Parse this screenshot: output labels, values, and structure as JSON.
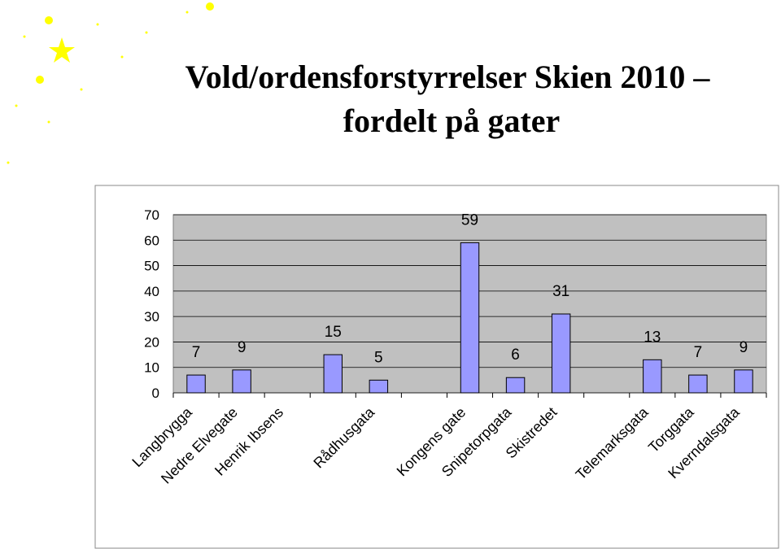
{
  "chart_data": {
    "type": "bar",
    "title": "Vold/ordensforstyrrelser Skien 2010 –",
    "subtitle": "fordelt på gater",
    "categories": [
      "Langbrygga",
      "Nedre Elvegate",
      "Henrik Ibsens",
      null,
      "Rådhusgata",
      null,
      "Kongens gate",
      "Snipetorpgata",
      "Skistredet",
      null,
      "Telemarksgata",
      "Torggata",
      "Kverndalsgata"
    ],
    "values": [
      7,
      9,
      null,
      15,
      5,
      null,
      59,
      6,
      31,
      null,
      13,
      7,
      9
    ],
    "color": "#9999ff",
    "ylim": [
      0,
      70
    ],
    "yticks": [
      0,
      10,
      20,
      30,
      40,
      50,
      60,
      70
    ],
    "grid": true
  }
}
